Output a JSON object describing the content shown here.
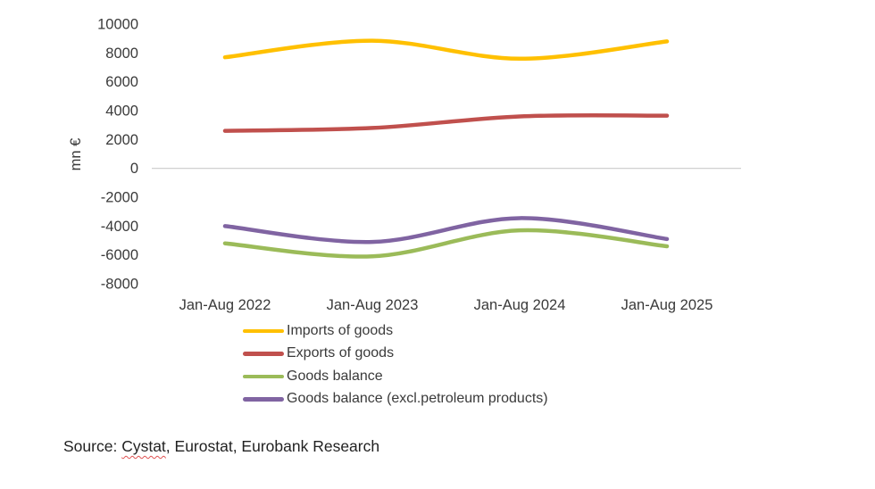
{
  "chart_data": {
    "type": "line",
    "title": "",
    "xlabel": "",
    "ylabel": "mn €",
    "ylim": [
      -8000,
      10000
    ],
    "ytick_step": 2000,
    "grid": false,
    "zero_axis_line": true,
    "line_style": "smooth",
    "legend_position": "bottom-left",
    "categories": [
      "Jan-Aug 2022",
      "Jan-Aug 2023",
      "Jan-Aug 2024",
      "Jan-Aug 2025"
    ],
    "series": [
      {
        "name": "Imports of goods",
        "color": "#FFC000",
        "values": [
          7700,
          8850,
          7600,
          8800
        ]
      },
      {
        "name": "Exports of goods",
        "color": "#C0504D",
        "values": [
          2600,
          2800,
          3600,
          3650
        ]
      },
      {
        "name": "Goods balance",
        "color": "#9BBB59",
        "values": [
          -5200,
          -6100,
          -4300,
          -5400
        ]
      },
      {
        "name": "Goods balance (excl.petroleum products)",
        "color": "#8064A2",
        "values": [
          -4000,
          -5100,
          -3450,
          -4900
        ]
      }
    ]
  },
  "source": {
    "prefix": "Source: ",
    "spellchecked_word": "Cystat",
    "suffix": ", Eurostat, Eurobank Research"
  }
}
